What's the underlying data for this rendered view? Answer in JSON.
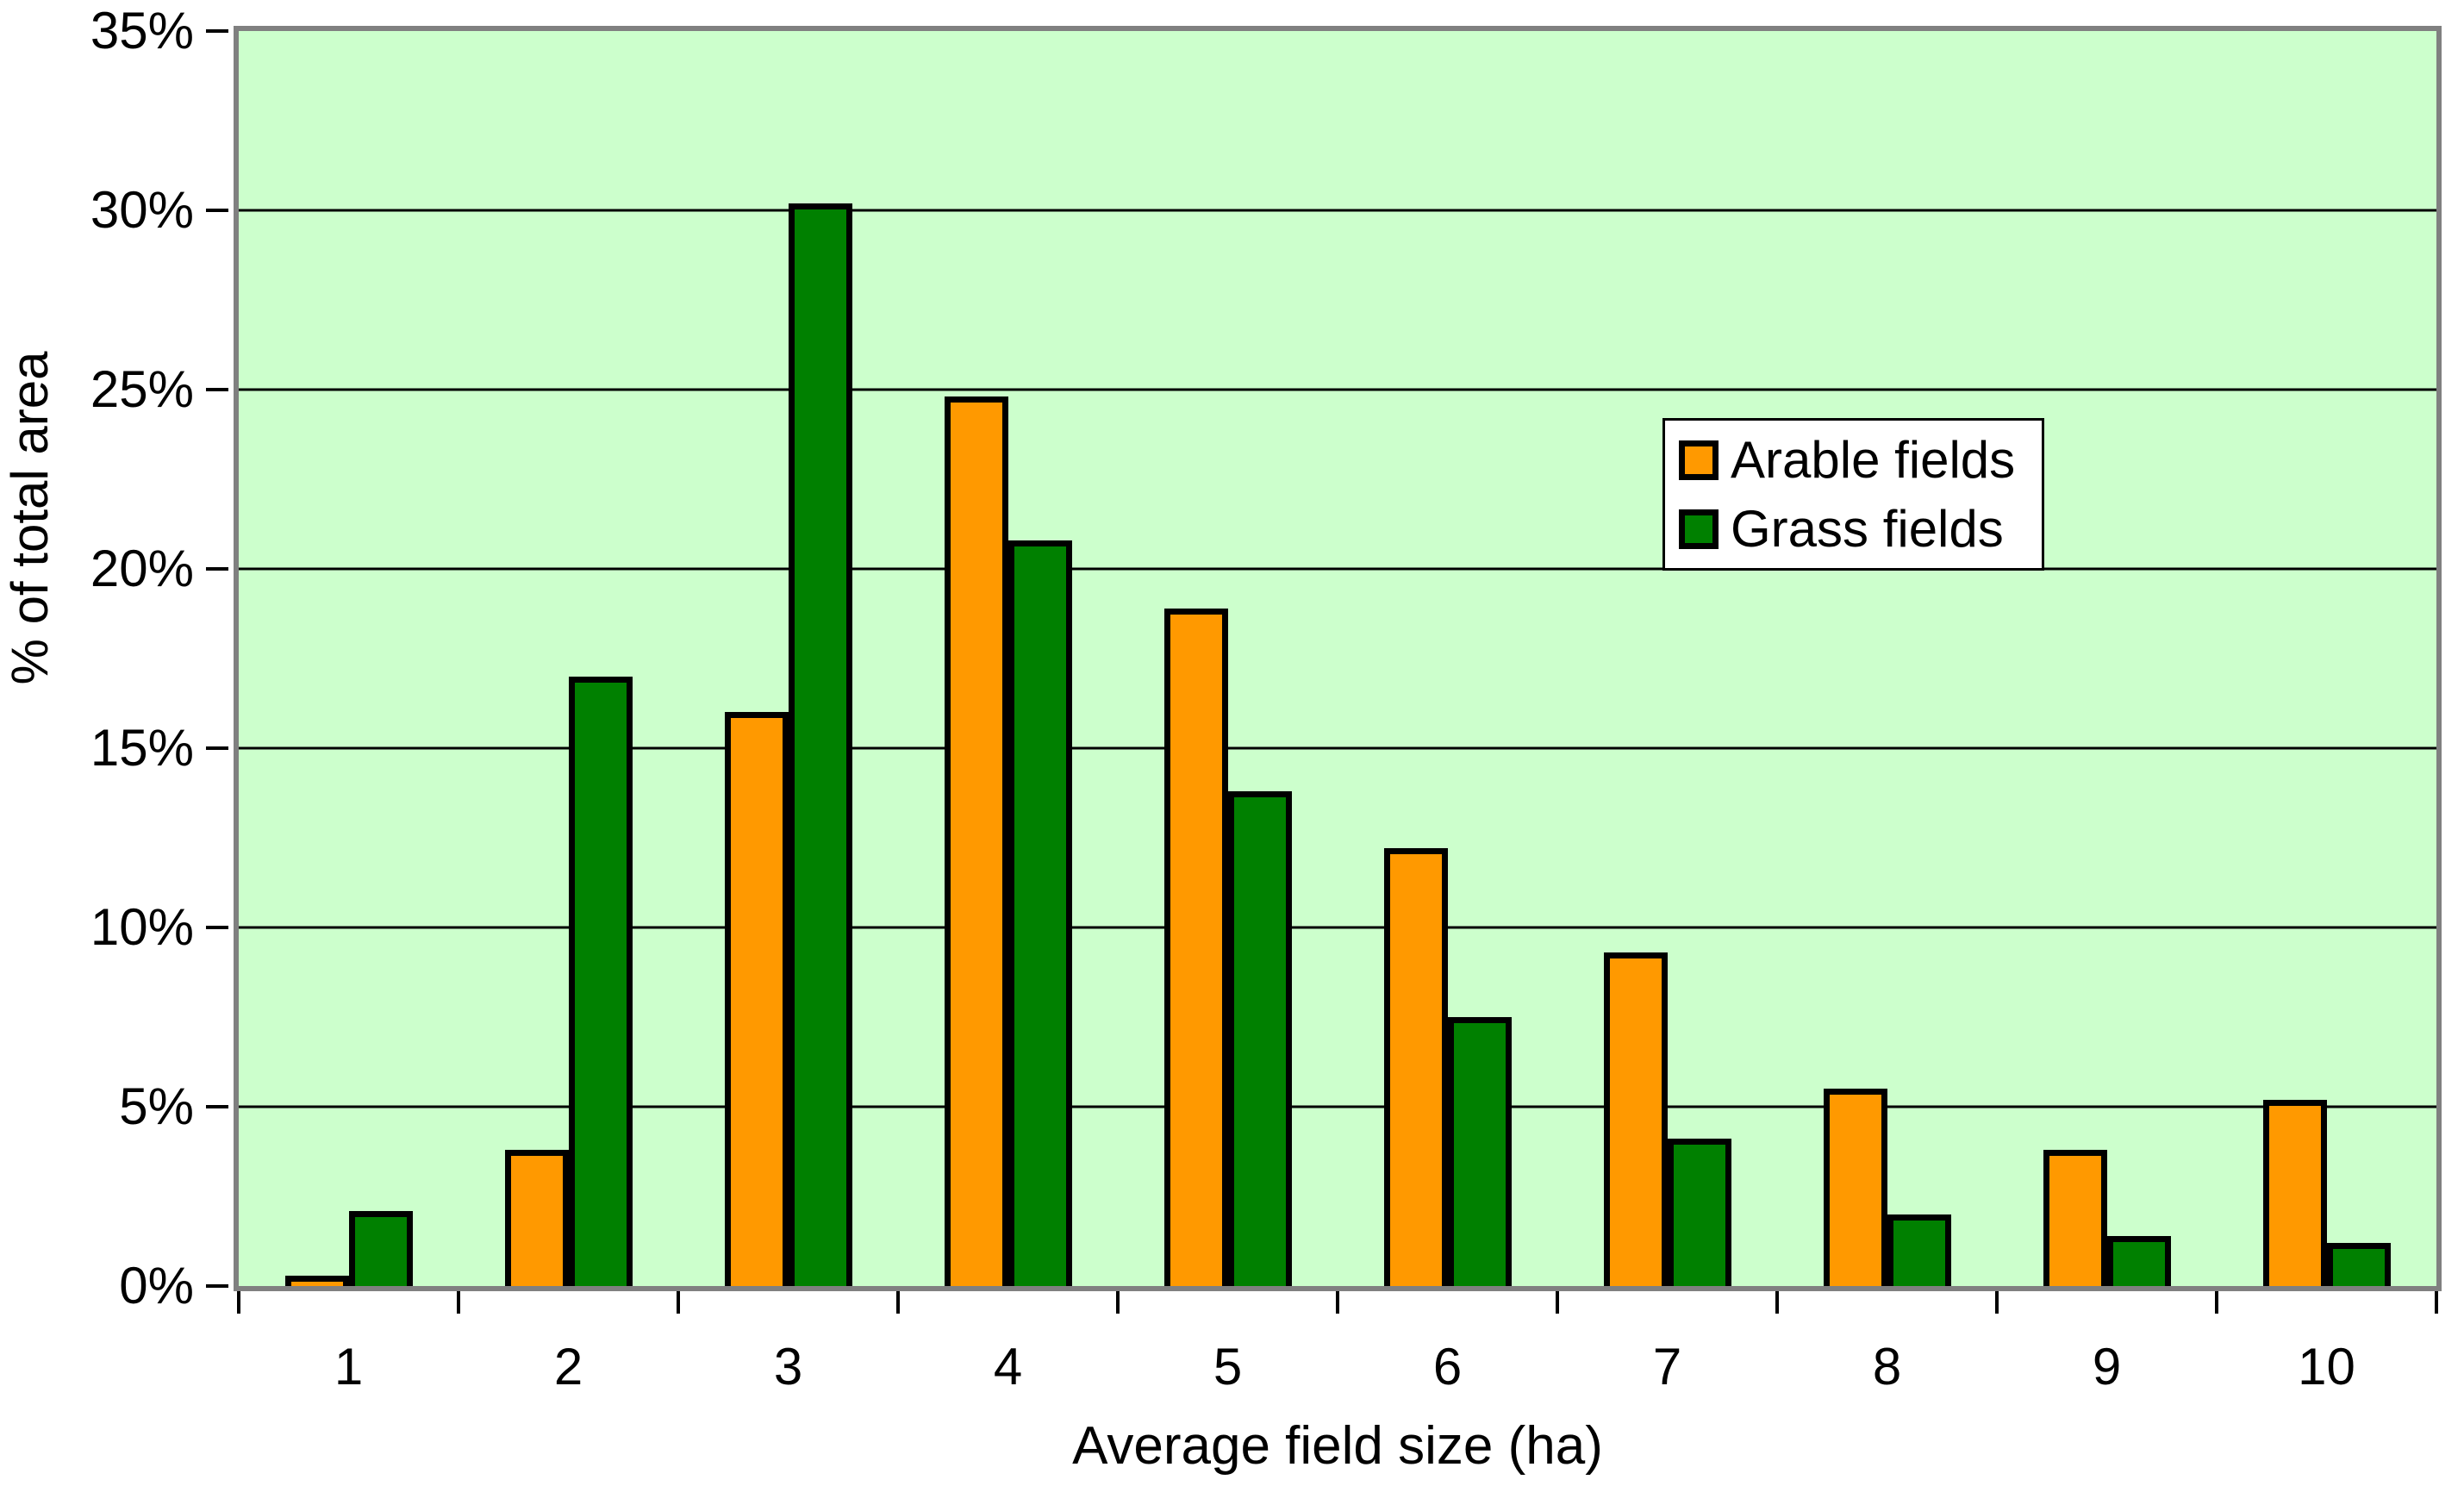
{
  "chart_data": {
    "type": "bar",
    "title": "",
    "categories": [
      "1",
      "2",
      "3",
      "4",
      "5",
      "6",
      "7",
      "8",
      "9",
      "10"
    ],
    "series": [
      {
        "name": "Arable fields",
        "color": "#FF9900",
        "values": [
          0.3,
          3.8,
          16.0,
          24.8,
          18.9,
          12.2,
          9.3,
          5.5,
          3.8,
          5.2
        ]
      },
      {
        "name": "Grass fields",
        "color": "#008000",
        "values": [
          2.1,
          17.0,
          30.2,
          20.8,
          13.8,
          7.5,
          4.1,
          2.0,
          1.4,
          1.2
        ]
      }
    ],
    "xlabel": "Average field size (ha)",
    "ylabel": "% of total area",
    "ylim": [
      0,
      35
    ],
    "y_tick_step": 5,
    "y_tick_labels": [
      "0%",
      "5%",
      "10%",
      "15%",
      "20%",
      "25%",
      "30%",
      "35%"
    ],
    "grid": true,
    "legend_position": "upper-right",
    "colors": {
      "plot_background": "#CCFFCC",
      "plot_border": "#808080",
      "gridline": "#000000",
      "bar_outline": "#000000",
      "page_background": "#FFFFFF",
      "text": "#000000"
    }
  }
}
